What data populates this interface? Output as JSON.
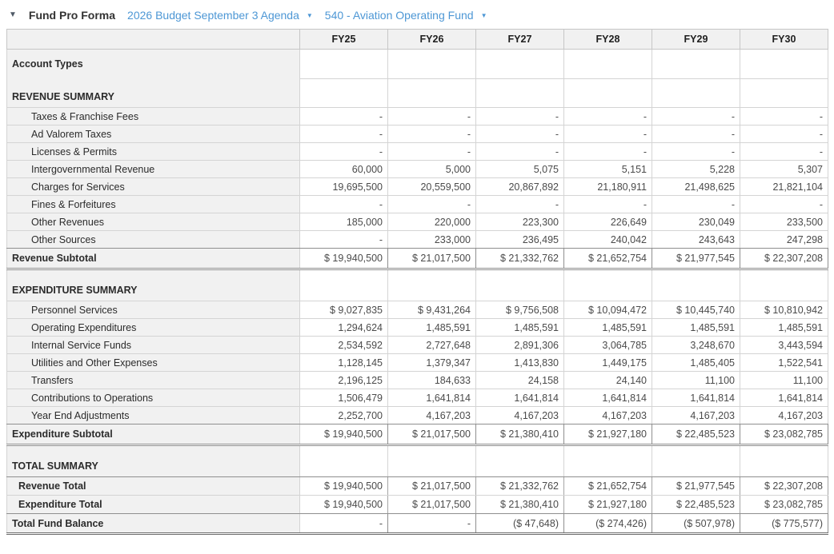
{
  "toolbar": {
    "collapse_icon": "▼",
    "title": "Fund Pro Forma",
    "budget_dropdown": {
      "label": "2026 Budget September 3 Agenda",
      "caret": "▼"
    },
    "fund_dropdown": {
      "label": "540 - Aviation Operating Fund",
      "caret": "▼"
    }
  },
  "colors": {
    "accent_link": "#4d97d5",
    "label_column_bg": "#f1f1f1",
    "grid_line": "#d4d4d4",
    "emphasis_border": "#8f8f8f"
  },
  "table": {
    "columns": [
      "FY25",
      "FY26",
      "FY27",
      "FY28",
      "FY29",
      "FY30"
    ],
    "rows": [
      {
        "kind": "label-tall",
        "label": "Account Types",
        "values": [
          "",
          "",
          "",
          "",
          "",
          ""
        ]
      },
      {
        "kind": "section-first",
        "label": "REVENUE SUMMARY",
        "values": [
          "",
          "",
          "",
          "",
          "",
          ""
        ]
      },
      {
        "kind": "data",
        "label": "Taxes & Franchise Fees",
        "values": [
          "-",
          "-",
          "-",
          "-",
          "-",
          "-"
        ]
      },
      {
        "kind": "data",
        "label": "Ad Valorem Taxes",
        "values": [
          "-",
          "-",
          "-",
          "-",
          "-",
          "-"
        ]
      },
      {
        "kind": "data",
        "label": "Licenses & Permits",
        "values": [
          "-",
          "-",
          "-",
          "-",
          "-",
          "-"
        ]
      },
      {
        "kind": "data",
        "label": "Intergovernmental Revenue",
        "values": [
          "60,000",
          "5,000",
          "5,075",
          "5,151",
          "5,228",
          "5,307"
        ]
      },
      {
        "kind": "data",
        "label": "Charges for Services",
        "values": [
          "19,695,500",
          "20,559,500",
          "20,867,892",
          "21,180,911",
          "21,498,625",
          "21,821,104"
        ]
      },
      {
        "kind": "data",
        "label": "Fines & Forfeitures",
        "values": [
          "-",
          "-",
          "-",
          "-",
          "-",
          "-"
        ]
      },
      {
        "kind": "data",
        "label": "Other Revenues",
        "values": [
          "185,000",
          "220,000",
          "223,300",
          "226,649",
          "230,049",
          "233,500"
        ]
      },
      {
        "kind": "data",
        "label": "Other Sources",
        "values": [
          "-",
          "233,000",
          "236,495",
          "240,042",
          "243,643",
          "247,298"
        ]
      },
      {
        "kind": "subtotal",
        "label": "Revenue Subtotal",
        "values": [
          "$ 19,940,500",
          "$ 21,017,500",
          "$ 21,332,762",
          "$ 21,652,754",
          "$ 21,977,545",
          "$ 22,307,208"
        ]
      },
      {
        "kind": "section-block",
        "label": "EXPENDITURE SUMMARY",
        "values": [
          "",
          "",
          "",
          "",
          "",
          ""
        ]
      },
      {
        "kind": "data",
        "label": "Personnel Services",
        "values": [
          "$ 9,027,835",
          "$ 9,431,264",
          "$ 9,756,508",
          "$ 10,094,472",
          "$ 10,445,740",
          "$ 10,810,942"
        ]
      },
      {
        "kind": "data",
        "label": "Operating Expenditures",
        "values": [
          "1,294,624",
          "1,485,591",
          "1,485,591",
          "1,485,591",
          "1,485,591",
          "1,485,591"
        ]
      },
      {
        "kind": "data",
        "label": "Internal Service Funds",
        "values": [
          "2,534,592",
          "2,727,648",
          "2,891,306",
          "3,064,785",
          "3,248,670",
          "3,443,594"
        ]
      },
      {
        "kind": "data",
        "label": "Utilities and Other Expenses",
        "values": [
          "1,128,145",
          "1,379,347",
          "1,413,830",
          "1,449,175",
          "1,485,405",
          "1,522,541"
        ]
      },
      {
        "kind": "data",
        "label": "Transfers",
        "values": [
          "2,196,125",
          "184,633",
          "24,158",
          "24,140",
          "11,100",
          "11,100"
        ]
      },
      {
        "kind": "data",
        "label": "Contributions to Operations",
        "values": [
          "1,506,479",
          "1,641,814",
          "1,641,814",
          "1,641,814",
          "1,641,814",
          "1,641,814"
        ]
      },
      {
        "kind": "data",
        "label": "Year End Adjustments",
        "values": [
          "2,252,700",
          "4,167,203",
          "4,167,203",
          "4,167,203",
          "4,167,203",
          "4,167,203"
        ]
      },
      {
        "kind": "subtotal",
        "label": "Expenditure Subtotal",
        "values": [
          "$ 19,940,500",
          "$ 21,017,500",
          "$ 21,380,410",
          "$ 21,927,180",
          "$ 22,485,523",
          "$ 23,082,785"
        ]
      },
      {
        "kind": "section-block",
        "label": "TOTAL SUMMARY",
        "values": [
          "",
          "",
          "",
          "",
          "",
          ""
        ]
      },
      {
        "kind": "total-top",
        "label": "Revenue Total",
        "values": [
          "$ 19,940,500",
          "$ 21,017,500",
          "$ 21,332,762",
          "$ 21,652,754",
          "$ 21,977,545",
          "$ 22,307,208"
        ]
      },
      {
        "kind": "total-mid",
        "label": "Expenditure Total",
        "values": [
          "$ 19,940,500",
          "$ 21,017,500",
          "$ 21,380,410",
          "$ 21,927,180",
          "$ 22,485,523",
          "$ 23,082,785"
        ]
      },
      {
        "kind": "grand-total",
        "label": "Total Fund Balance",
        "values": [
          "-",
          "-",
          "($ 47,648)",
          "($ 274,426)",
          "($ 507,978)",
          "($ 775,577)"
        ]
      }
    ]
  }
}
